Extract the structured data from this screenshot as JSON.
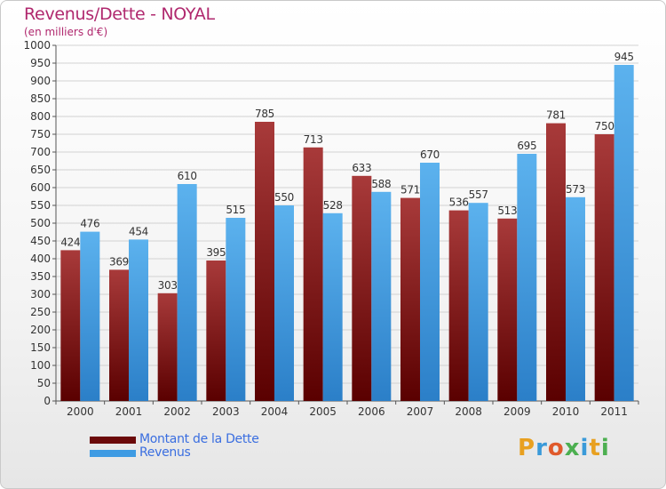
{
  "header": {
    "title": "Revenus/Dette - NOYAL",
    "subtitle": "(en milliers d'€)"
  },
  "chart_data": {
    "type": "bar",
    "categories": [
      "2000",
      "2001",
      "2002",
      "2003",
      "2004",
      "2005",
      "2006",
      "2007",
      "2008",
      "2009",
      "2010",
      "2011"
    ],
    "series": [
      {
        "name": "Montant de la Dette",
        "color": "#8b1c1c",
        "values": [
          424,
          369,
          303,
          395,
          785,
          713,
          633,
          571,
          536,
          513,
          781,
          750
        ]
      },
      {
        "name": "Revenus",
        "color": "#4aa3e6",
        "values": [
          476,
          454,
          610,
          515,
          550,
          528,
          588,
          670,
          557,
          695,
          573,
          945
        ]
      }
    ],
    "ylim": [
      0,
      1000
    ],
    "ytick_step": 50,
    "grid": true,
    "legend_position": "bottom-left"
  },
  "legend": {
    "items": [
      {
        "label": "Montant de la Dette",
        "color": "#6b0a0a"
      },
      {
        "label": "Revenus",
        "color": "#3e9be3"
      }
    ]
  },
  "logo": {
    "letters": [
      "P",
      "r",
      "o",
      "x",
      "i",
      "t",
      "i"
    ],
    "colors": [
      "#e8a020",
      "#3a9ad9",
      "#e05a2b",
      "#4caf50",
      "#3a9ad9",
      "#e8a020",
      "#4caf50"
    ]
  }
}
